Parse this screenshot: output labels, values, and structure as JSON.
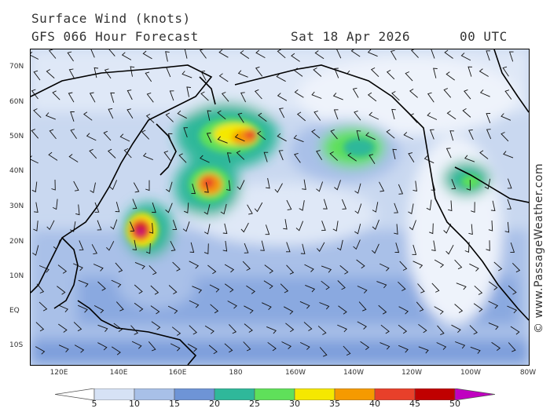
{
  "header": {
    "title": "Surface Wind (knots)",
    "forecast": "GFS 066 Hour Forecast",
    "date": "Sat 18 Apr 2026",
    "time": "00 UTC"
  },
  "lat_labels": [
    "70N",
    "60N",
    "50N",
    "40N",
    "30N",
    "20N",
    "10N",
    "EQ",
    "10S"
  ],
  "lon_labels": [
    "120E",
    "140E",
    "160E",
    "180",
    "160W",
    "140W",
    "120W",
    "100W",
    "80W"
  ],
  "watermark": "© www.PassageWeather.com",
  "legend": {
    "ticks": [
      "5",
      "10",
      "15",
      "20",
      "25",
      "30",
      "35",
      "40",
      "45",
      "50"
    ],
    "colors": [
      "#ffffff",
      "#d6e2f5",
      "#a8c0e8",
      "#6e94d6",
      "#2fb89a",
      "#5fe05a",
      "#f5e800",
      "#f59a00",
      "#e8402a",
      "#c00000",
      "#c000c0"
    ]
  }
}
